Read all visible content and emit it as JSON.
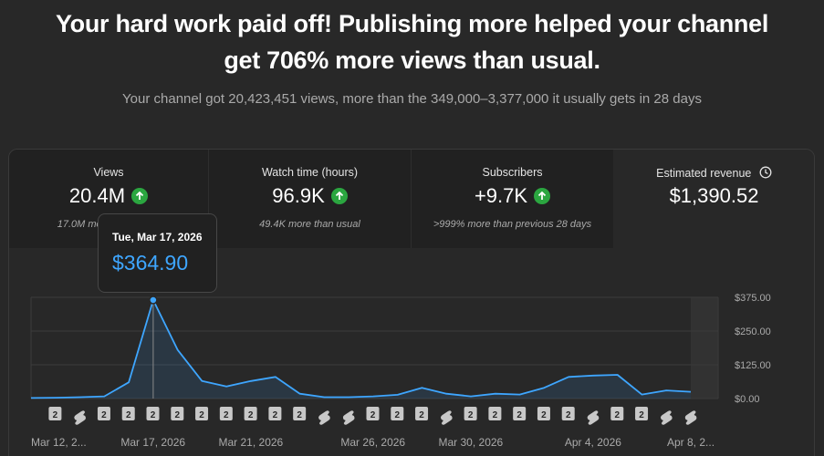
{
  "headline": {
    "line1": "Your hard work paid off! Publishing more helped your channel",
    "line2": "get 706% more views than usual."
  },
  "subline": "Your channel got 20,423,451 views, more than the 349,000–3,377,000 it usually gets in 28 days",
  "metrics": [
    {
      "label": "Views",
      "value": "20.4M",
      "trend": "up",
      "sub": "17.0M more than usual"
    },
    {
      "label": "Watch time (hours)",
      "value": "96.9K",
      "trend": "up",
      "sub": "49.4K more than usual"
    },
    {
      "label": "Subscribers",
      "value": "+9.7K",
      "trend": "up",
      "sub": ">999% more than previous 28 days"
    },
    {
      "label": "Estimated revenue",
      "value": "$1,390.52",
      "trend": "none",
      "sub": "",
      "icon": "clock-icon"
    }
  ],
  "tooltip": {
    "date": "Tue, Mar 17, 2026",
    "value": "$364.90"
  },
  "colors": {
    "line": "#3ea6ff",
    "up": "#2ba640",
    "background": "#282828"
  },
  "chart_data": {
    "type": "area",
    "x": [
      "Mar 12, 2026",
      "Mar 13, 2026",
      "Mar 14, 2026",
      "Mar 15, 2026",
      "Mar 16, 2026",
      "Mar 17, 2026",
      "Mar 18, 2026",
      "Mar 19, 2026",
      "Mar 20, 2026",
      "Mar 21, 2026",
      "Mar 22, 2026",
      "Mar 23, 2026",
      "Mar 24, 2026",
      "Mar 25, 2026",
      "Mar 26, 2026",
      "Mar 27, 2026",
      "Mar 28, 2026",
      "Mar 29, 2026",
      "Mar 30, 2026",
      "Mar 31, 2026",
      "Apr 1, 2026",
      "Apr 2, 2026",
      "Apr 3, 2026",
      "Apr 4, 2026",
      "Apr 5, 2026",
      "Apr 6, 2026",
      "Apr 7, 2026",
      "Apr 8, 2026"
    ],
    "series": [
      {
        "values": [
          2,
          3,
          5,
          8,
          60,
          364.9,
          180,
          65,
          45,
          65,
          80,
          18,
          5,
          5,
          8,
          14,
          40,
          18,
          8,
          18,
          15,
          40,
          80,
          85,
          88,
          15,
          30,
          25
        ]
      }
    ],
    "y_ticks": [
      "$375.00",
      "$250.00",
      "$125.00",
      "$0.00"
    ],
    "ylim": [
      0,
      375
    ],
    "x_tick_labels": [
      "Mar 12, 2...",
      "Mar 17, 2026",
      "Mar 21, 2026",
      "Mar 26, 2026",
      "Mar 30, 2026",
      "Apr 4, 2026",
      "Apr 8, 2..."
    ],
    "x_tick_index": [
      0,
      5,
      9,
      14,
      18,
      23,
      27
    ],
    "markers": [
      "2",
      "s",
      "2",
      "2",
      "2",
      "2",
      "2",
      "2",
      "2",
      "2",
      "2",
      "s",
      "s",
      "2",
      "2",
      "2",
      "s",
      "2",
      "2",
      "2",
      "2",
      "2",
      "s",
      "2",
      "2",
      "s",
      "s"
    ],
    "highlighted_index": 5,
    "grid": true,
    "partial_last_region": true
  }
}
